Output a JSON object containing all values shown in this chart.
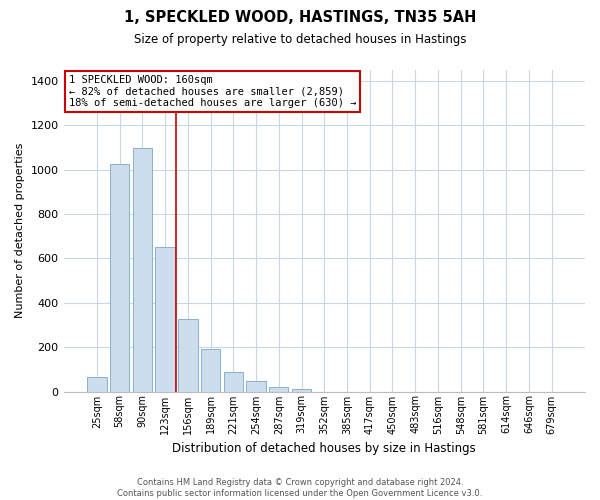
{
  "title": "1, SPECKLED WOOD, HASTINGS, TN35 5AH",
  "subtitle": "Size of property relative to detached houses in Hastings",
  "xlabel": "Distribution of detached houses by size in Hastings",
  "ylabel": "Number of detached properties",
  "bar_labels": [
    "25sqm",
    "58sqm",
    "90sqm",
    "123sqm",
    "156sqm",
    "189sqm",
    "221sqm",
    "254sqm",
    "287sqm",
    "319sqm",
    "352sqm",
    "385sqm",
    "417sqm",
    "450sqm",
    "483sqm",
    "516sqm",
    "548sqm",
    "581sqm",
    "614sqm",
    "646sqm",
    "679sqm"
  ],
  "bar_values": [
    65,
    1025,
    1100,
    650,
    325,
    190,
    88,
    48,
    22,
    12,
    0,
    0,
    0,
    0,
    0,
    0,
    0,
    0,
    0,
    0,
    0
  ],
  "bar_color": "#ccdded",
  "bar_edge_color": "#8ab0cc",
  "vline_x_index": 3.5,
  "vline_color": "#cc0000",
  "annotation_line1": "1 SPECKLED WOOD: 160sqm",
  "annotation_line2": "← 82% of detached houses are smaller (2,859)",
  "annotation_line3": "18% of semi-detached houses are larger (630) →",
  "annotation_box_color": "#ffffff",
  "annotation_box_edge": "#cc0000",
  "ylim": [
    0,
    1450
  ],
  "yticks": [
    0,
    200,
    400,
    600,
    800,
    1000,
    1200,
    1400
  ],
  "footer_line1": "Contains HM Land Registry data © Crown copyright and database right 2024.",
  "footer_line2": "Contains public sector information licensed under the Open Government Licence v3.0.",
  "background_color": "#ffffff",
  "grid_color": "#c8d8e8"
}
